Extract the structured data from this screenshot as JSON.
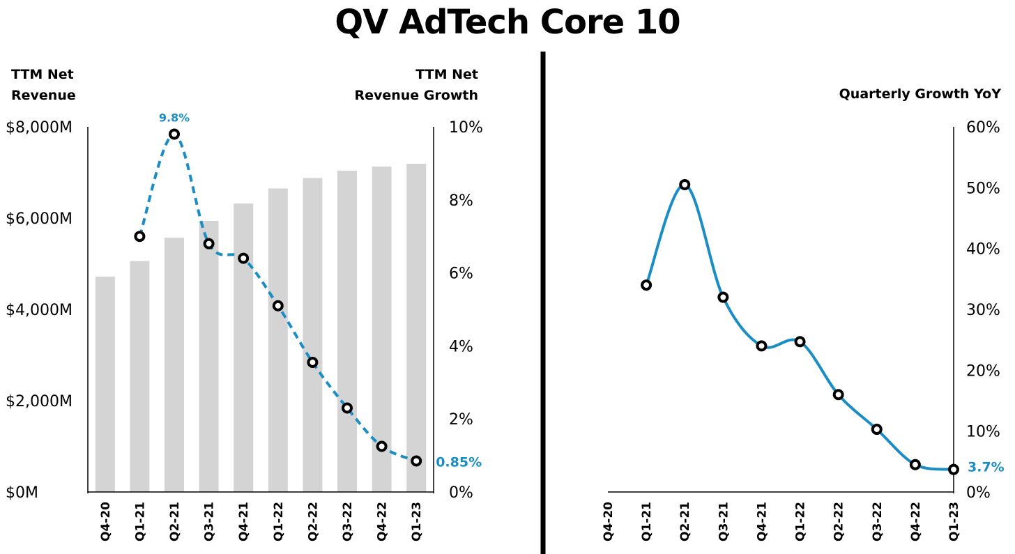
{
  "title": "QV AdTech Core 10",
  "colors": {
    "accent": "#1a8ec4",
    "bars": "#d4d4d4",
    "marker_fill": "#ffffff",
    "marker_stroke": "#000000",
    "divider": "#000000"
  },
  "chart_data": [
    {
      "type": "bar",
      "categories": [
        "Q4-20",
        "Q1-21",
        "Q2-21",
        "Q3-21",
        "Q4-21",
        "Q1-22",
        "Q2-22",
        "Q3-22",
        "Q4-22",
        "Q1-23"
      ],
      "ylabel_left": [
        "TTM Net",
        "Revenue"
      ],
      "ylabel_right": [
        "TTM Net",
        "Revenue Growth"
      ],
      "y_left": {
        "min": 0,
        "max": 8000,
        "ticks": [
          0,
          2000,
          4000,
          6000,
          8000
        ],
        "tick_labels": [
          "$0M",
          "$2,000M",
          "$4,000M",
          "$6,000M",
          "$8,000M"
        ]
      },
      "y_right": {
        "min": 0,
        "max": 10,
        "ticks": [
          0,
          2,
          4,
          6,
          8,
          10
        ],
        "tick_labels": [
          "0%",
          "2%",
          "4%",
          "6%",
          "8%",
          "10%"
        ]
      },
      "series": [
        {
          "type": "bar",
          "axis": "left",
          "values": [
            4720,
            5060,
            5570,
            5940,
            6320,
            6650,
            6880,
            7040,
            7130,
            7190
          ]
        },
        {
          "type": "line",
          "style": "dashed",
          "axis": "right",
          "values": [
            null,
            7.0,
            9.8,
            6.8,
            6.4,
            5.1,
            3.55,
            2.3,
            1.25,
            0.85
          ]
        }
      ],
      "data_labels": [
        {
          "category": "Q2-21",
          "text": "9.8%"
        },
        {
          "category": "Q1-23",
          "text": "0.85%"
        }
      ],
      "grid": false
    },
    {
      "type": "line",
      "categories": [
        "Q4-20",
        "Q1-21",
        "Q2-21",
        "Q3-21",
        "Q4-21",
        "Q1-22",
        "Q2-22",
        "Q3-22",
        "Q4-22",
        "Q1-23"
      ],
      "ylabel_right": [
        "Quarterly Growth YoY"
      ],
      "y_right": {
        "min": 0,
        "max": 60,
        "ticks": [
          0,
          10,
          20,
          30,
          40,
          50,
          60
        ],
        "tick_labels": [
          "0%",
          "10%",
          "20%",
          "30%",
          "40%",
          "50%",
          "60%"
        ]
      },
      "series": [
        {
          "type": "line",
          "style": "smooth",
          "axis": "right",
          "values": [
            null,
            34,
            50.5,
            32,
            24,
            24.7,
            16,
            10.3,
            4.5,
            3.7
          ]
        }
      ],
      "data_labels": [
        {
          "category": "Q1-23",
          "text": "3.7%"
        }
      ],
      "grid": false
    }
  ]
}
